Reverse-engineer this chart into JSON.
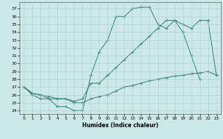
{
  "xlabel": "Humidex (Indice chaleur)",
  "background_color": "#cce8e8",
  "line_color": "#2a7a6a",
  "series_A_x": [
    0,
    1,
    2,
    3,
    4,
    5,
    6,
    7,
    8,
    9,
    10,
    11,
    12,
    13,
    14,
    15,
    16,
    17,
    18,
    19,
    20,
    21
  ],
  "series_A_y": [
    27,
    26,
    25.5,
    25.5,
    24.5,
    24.5,
    24,
    24,
    28.5,
    31.5,
    33,
    36,
    36,
    37,
    37.2,
    37.2,
    35,
    34.5,
    35.5,
    34,
    31,
    28
  ],
  "series_B_x": [
    0,
    1,
    2,
    3,
    4,
    5,
    6,
    7,
    8,
    9,
    10,
    11,
    12,
    13,
    14,
    15,
    16,
    17,
    18,
    19,
    20,
    21,
    22,
    23
  ],
  "series_B_y": [
    27,
    26.2,
    26,
    25.8,
    25.5,
    25.5,
    25.2,
    25.5,
    27.5,
    27.5,
    28.5,
    29.5,
    30.5,
    31.5,
    32.5,
    33.5,
    34.5,
    35.5,
    35.5,
    35.0,
    34.5,
    35.5,
    35.5,
    28.5
  ],
  "series_C_x": [
    0,
    1,
    2,
    3,
    4,
    5,
    6,
    7,
    8,
    9,
    10,
    11,
    12,
    13,
    14,
    15,
    16,
    17,
    18,
    19,
    20,
    21,
    22,
    23
  ],
  "series_C_y": [
    27,
    26.2,
    26,
    25.5,
    25.5,
    25.5,
    25,
    25,
    25.5,
    25.8,
    26.0,
    26.5,
    27.0,
    27.2,
    27.5,
    27.8,
    28.0,
    28.2,
    28.4,
    28.5,
    28.7,
    28.8,
    29.0,
    28.5
  ],
  "ylim_min": 23.6,
  "ylim_max": 37.8,
  "xlim_min": -0.5,
  "xlim_max": 23.5
}
